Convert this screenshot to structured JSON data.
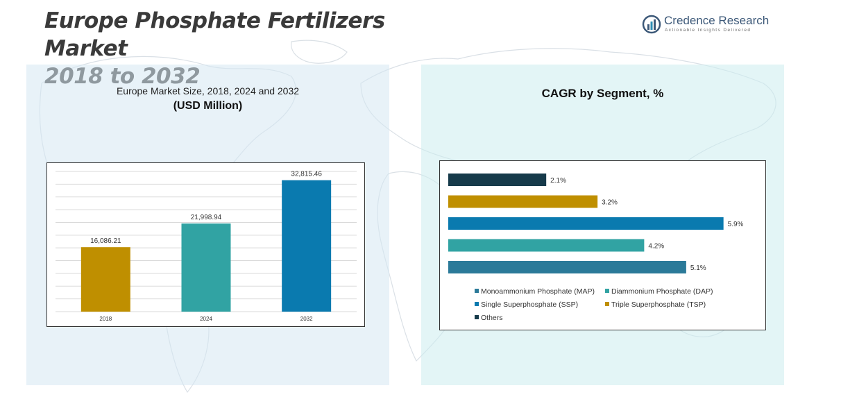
{
  "header": {
    "title_line1": "Europe Phosphate Fertilizers Market",
    "title_line2": "2018 to 2032"
  },
  "logo": {
    "name": "Credence Research",
    "tagline": "Actionable Insights Delivered",
    "icon": "bar-chart-logo-icon",
    "color": "#3c5878"
  },
  "left_panel": {
    "subtitle": "Europe Market Size, 2018, 2024 and 2032",
    "unit": "(USD Million)"
  },
  "right_panel": {
    "title": "CAGR by Segment, %"
  },
  "chart_data": [
    {
      "type": "bar",
      "title": "Europe Market Size, 2018, 2024 and 2032 (USD Million)",
      "categories": [
        "2018",
        "2024",
        "2032"
      ],
      "values": [
        16086.21,
        21998.94,
        32815.46
      ],
      "value_labels": [
        "16,086.21",
        "21,998.94",
        "32,815.46"
      ],
      "colors": [
        "#bf8f00",
        "#31a3a3",
        "#0a7aaf"
      ],
      "ylim": [
        0,
        35000
      ],
      "grid": true,
      "xlabel": "",
      "ylabel": ""
    },
    {
      "type": "bar",
      "orientation": "horizontal",
      "title": "CAGR by Segment, %",
      "categories": [
        "Others",
        "Triple Superphosphate (TSP)",
        "Single Superphosphate (SSP)",
        "Diammonium Phosphate (DAP)",
        "Monoammonium Phosphate (MAP)"
      ],
      "values": [
        2.1,
        3.2,
        5.9,
        4.2,
        5.1
      ],
      "value_labels": [
        "2.1%",
        "3.2%",
        "5.9%",
        "4.2%",
        "5.1%"
      ],
      "colors": [
        "#163a4a",
        "#bf8f00",
        "#0a7aaf",
        "#31a3a3",
        "#2b7a99"
      ],
      "xlim": [
        0,
        6.5
      ],
      "legend": [
        {
          "label": "Monoammonium Phosphate (MAP)",
          "color": "#2b7a99"
        },
        {
          "label": "Diammonium Phosphate (DAP)",
          "color": "#31a3a3"
        },
        {
          "label": "Single Superphosphate (SSP)",
          "color": "#0a7aaf"
        },
        {
          "label": "Triple Superphosphate (TSP)",
          "color": "#bf8f00"
        },
        {
          "label": "Others",
          "color": "#163a4a"
        }
      ],
      "legend_position": "bottom"
    }
  ]
}
